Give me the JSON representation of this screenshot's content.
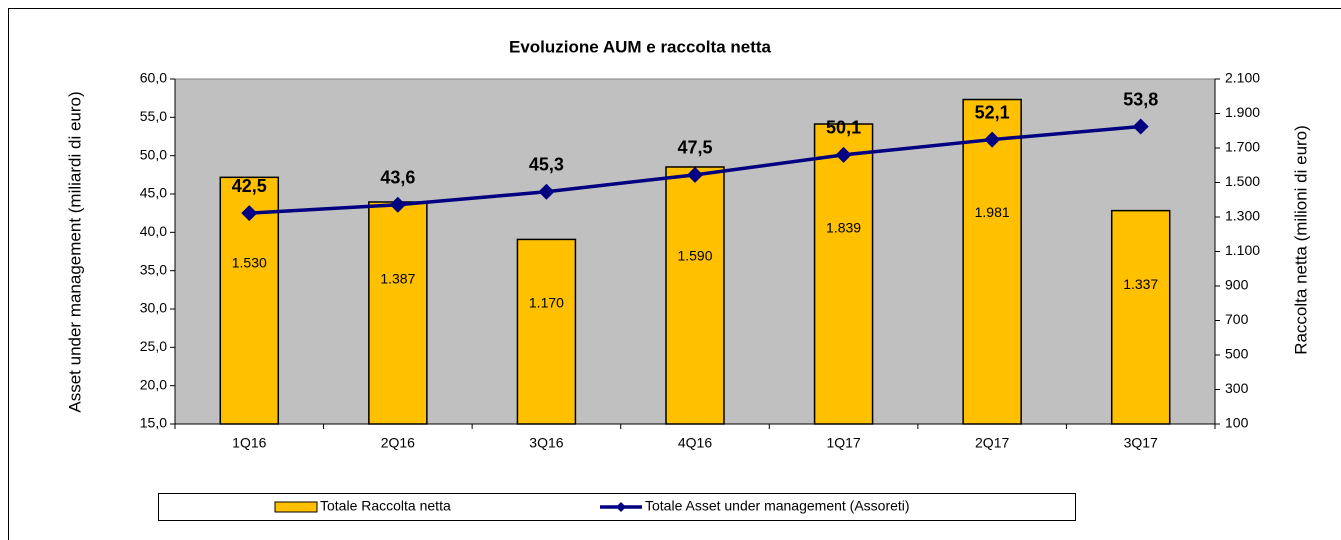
{
  "chart_data": {
    "type": "bar",
    "title": "Evoluzione AUM e raccolta netta",
    "y_label": "Asset under management (miliardi di euro)",
    "y2_label": "Raccolta netta (milioni di euro)",
    "categories": [
      "1Q16",
      "2Q16",
      "3Q16",
      "4Q16",
      "1Q17",
      "2Q17",
      "3Q17"
    ],
    "series": [
      {
        "name": "Totale Raccolta netta",
        "type": "bar",
        "axis": "y2",
        "color": "#ffc000",
        "values": [
          1530,
          1387,
          1170,
          1590,
          1839,
          1981,
          1337
        ],
        "value_labels": [
          "1.530",
          "1.387",
          "1.170",
          "1.590",
          "1.839",
          "1.981",
          "1.337"
        ]
      },
      {
        "name": "Totale Asset under management (Assoreti)",
        "type": "line",
        "axis": "y",
        "color": "#000080",
        "values": [
          42.5,
          43.6,
          45.3,
          47.5,
          50.1,
          52.1,
          53.8
        ],
        "value_labels": [
          "42,5",
          "43,6",
          "45,3",
          "47,5",
          "50,1",
          "52,1",
          "53,8"
        ]
      }
    ],
    "ylim": [
      15,
      60
    ],
    "yticks": [
      {
        "value": 15,
        "label": "15,0"
      },
      {
        "value": 20,
        "label": "20,0"
      },
      {
        "value": 25,
        "label": "25,0"
      },
      {
        "value": 30,
        "label": "30,0"
      },
      {
        "value": 35,
        "label": "35,0"
      },
      {
        "value": 40,
        "label": "40,0"
      },
      {
        "value": 45,
        "label": "45,0"
      },
      {
        "value": 50,
        "label": "50,0"
      },
      {
        "value": 55,
        "label": "55,0"
      },
      {
        "value": 60,
        "label": "60,0"
      }
    ],
    "y2lim": [
      100,
      2100
    ],
    "y2ticks": [
      100,
      300,
      500,
      700,
      900,
      {
        "value": 1100,
        "label": "1.100"
      },
      {
        "value": 1300,
        "label": "1.300"
      },
      {
        "value": 1500,
        "label": "1.500"
      },
      {
        "value": 1700,
        "label": "1.700"
      },
      {
        "value": 1900,
        "label": "1.900"
      },
      {
        "value": 2100,
        "label": "2.100"
      }
    ],
    "plot_background": "#c0c0c0",
    "legend": "bottom"
  }
}
